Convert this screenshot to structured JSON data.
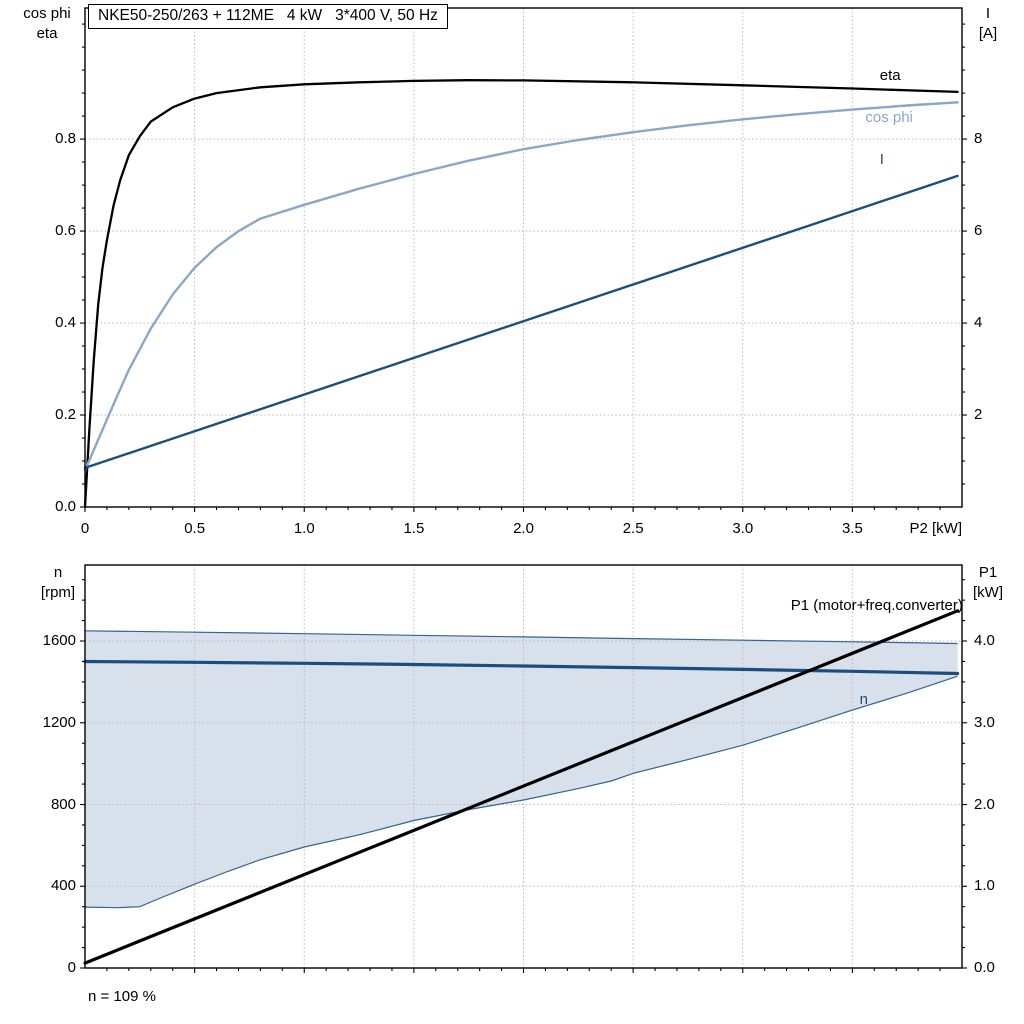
{
  "chart_data": [
    {
      "type": "line",
      "title": "NKE50-250/263 + 112ME   4 kW   3*400 V, 50 Hz",
      "xlabel": "P2 [kW]",
      "ylabel_left": [
        "cos phi",
        "eta"
      ],
      "ylabel_right": [
        "I",
        "[A]"
      ],
      "xlim": [
        0,
        4.0
      ],
      "ylim_left": [
        0,
        1.085
      ],
      "ylim_right": [
        0,
        10.85
      ],
      "grid": true,
      "x_ticks": [
        {
          "v": 0,
          "label": "0"
        },
        {
          "v": 0.5,
          "label": "0.5"
        },
        {
          "v": 1.0,
          "label": "1.0"
        },
        {
          "v": 1.5,
          "label": "1.5"
        },
        {
          "v": 2.0,
          "label": "2.0"
        },
        {
          "v": 2.5,
          "label": "2.5"
        },
        {
          "v": 3.0,
          "label": "3.0"
        },
        {
          "v": 3.5,
          "label": "3.5"
        }
      ],
      "y_ticks_left": [
        {
          "v": 0.0,
          "label": "0.0"
        },
        {
          "v": 0.2,
          "label": "0.2"
        },
        {
          "v": 0.4,
          "label": "0.4"
        },
        {
          "v": 0.6,
          "label": "0.6"
        },
        {
          "v": 0.8,
          "label": "0.8"
        }
      ],
      "y_ticks_right": [
        {
          "v": 2,
          "label": "2"
        },
        {
          "v": 4,
          "label": "4"
        },
        {
          "v": 6,
          "label": "6"
        },
        {
          "v": 8,
          "label": "8"
        }
      ],
      "minor": {
        "x": 0.1,
        "left": 0.05,
        "right": 0.5
      },
      "series": [
        {
          "name": "eta",
          "axis": "left",
          "color": "#000000",
          "width": 2.3,
          "label_at": [
            3.72,
            0.937
          ],
          "points": [
            [
              0,
              0
            ],
            [
              0.02,
              0.17
            ],
            [
              0.04,
              0.32
            ],
            [
              0.06,
              0.44
            ],
            [
              0.08,
              0.52
            ],
            [
              0.1,
              0.58
            ],
            [
              0.13,
              0.655
            ],
            [
              0.16,
              0.71
            ],
            [
              0.2,
              0.765
            ],
            [
              0.25,
              0.806
            ],
            [
              0.3,
              0.838
            ],
            [
              0.4,
              0.869
            ],
            [
              0.5,
              0.888
            ],
            [
              0.6,
              0.9
            ],
            [
              0.8,
              0.9125
            ],
            [
              1.0,
              0.919
            ],
            [
              1.25,
              0.9235
            ],
            [
              1.5,
              0.9265
            ],
            [
              1.75,
              0.928
            ],
            [
              2.0,
              0.9275
            ],
            [
              2.5,
              0.9235
            ],
            [
              3.0,
              0.917
            ],
            [
              3.5,
              0.91
            ],
            [
              3.98,
              0.9025
            ]
          ]
        },
        {
          "name": "cos phi",
          "axis": "left",
          "color": "#8BA7C6",
          "width": 2.4,
          "label_at": [
            3.776,
            0.846
          ],
          "points": [
            [
              0,
              0.08
            ],
            [
              0.05,
              0.135
            ],
            [
              0.1,
              0.19
            ],
            [
              0.15,
              0.245
            ],
            [
              0.2,
              0.298
            ],
            [
              0.3,
              0.388
            ],
            [
              0.4,
              0.462
            ],
            [
              0.5,
              0.52
            ],
            [
              0.6,
              0.565
            ],
            [
              0.7,
              0.6
            ],
            [
              0.8,
              0.627
            ],
            [
              1.0,
              0.657
            ],
            [
              1.25,
              0.692
            ],
            [
              1.5,
              0.724
            ],
            [
              1.75,
              0.753
            ],
            [
              2.0,
              0.778
            ],
            [
              2.25,
              0.798
            ],
            [
              2.5,
              0.815
            ],
            [
              2.75,
              0.83
            ],
            [
              3.0,
              0.843
            ],
            [
              3.25,
              0.854
            ],
            [
              3.5,
              0.864
            ],
            [
              3.75,
              0.873
            ],
            [
              3.98,
              0.88
            ]
          ]
        },
        {
          "name": "I",
          "axis": "right",
          "color": "#1B4E7D",
          "width": 2.4,
          "label_at": [
            3.644,
            7.545
          ],
          "points": [
            [
              0,
              0.85
            ],
            [
              3.98,
              7.2
            ]
          ]
        }
      ]
    },
    {
      "type": "line",
      "xlabel": "",
      "ylabel_left": [
        "n",
        "[rpm]"
      ],
      "ylabel_right": [
        "P1",
        "[kW]"
      ],
      "annotation": "n = 109 %",
      "xlim": [
        0,
        4.0
      ],
      "ylim_left": [
        0,
        1972
      ],
      "ylim_right": [
        0,
        4.93
      ],
      "grid": true,
      "x_ticks": [
        {
          "v": 0.5,
          "label": ""
        },
        {
          "v": 1.0,
          "label": ""
        },
        {
          "v": 1.5,
          "label": ""
        },
        {
          "v": 2.0,
          "label": ""
        },
        {
          "v": 2.5,
          "label": ""
        },
        {
          "v": 3.0,
          "label": ""
        },
        {
          "v": 3.5,
          "label": ""
        }
      ],
      "y_ticks_left": [
        {
          "v": 0,
          "label": "0"
        },
        {
          "v": 400,
          "label": "400"
        },
        {
          "v": 800,
          "label": "800"
        },
        {
          "v": 1200,
          "label": "1200"
        },
        {
          "v": 1600,
          "label": "1600"
        }
      ],
      "y_ticks_right": [
        {
          "v": 0,
          "label": "0.0"
        },
        {
          "v": 1,
          "label": "1.0"
        },
        {
          "v": 2,
          "label": "2.0"
        },
        {
          "v": 3,
          "label": "3.0"
        },
        {
          "v": 4,
          "label": "4.0"
        }
      ],
      "minor": {
        "x": 0.1,
        "left": 100,
        "right": 0.25
      },
      "band": {
        "name": "speed-range-band",
        "fill": "#c9d6e4",
        "fill_opacity": 0.75,
        "edge": "#356392",
        "upper": [
          [
            0,
            1650
          ],
          [
            0.5,
            1643
          ],
          [
            1.0,
            1636
          ],
          [
            1.5,
            1628
          ],
          [
            2.0,
            1620
          ],
          [
            2.5,
            1612
          ],
          [
            3.0,
            1604
          ],
          [
            3.5,
            1596
          ],
          [
            3.98,
            1588
          ]
        ],
        "lower": [
          [
            0,
            298
          ],
          [
            0.15,
            295
          ],
          [
            0.25,
            300
          ],
          [
            0.35,
            345
          ],
          [
            0.5,
            410
          ],
          [
            0.65,
            472
          ],
          [
            0.8,
            530
          ],
          [
            1.0,
            592
          ],
          [
            1.25,
            652
          ],
          [
            1.5,
            722
          ],
          [
            1.75,
            775
          ],
          [
            2.0,
            822
          ],
          [
            2.25,
            878
          ],
          [
            2.4,
            915
          ],
          [
            2.5,
            952
          ],
          [
            2.75,
            1020
          ],
          [
            3.0,
            1090
          ],
          [
            3.25,
            1175
          ],
          [
            3.5,
            1262
          ],
          [
            3.75,
            1345
          ],
          [
            3.98,
            1428
          ]
        ]
      },
      "series": [
        {
          "name": "n",
          "axis": "left",
          "color": "#1B4E7D",
          "width": 3.2,
          "label_at": [
            3.571,
            1311
          ],
          "points": [
            [
              0,
              1500
            ],
            [
              0.5,
              1496
            ],
            [
              1.0,
              1491
            ],
            [
              1.5,
              1485
            ],
            [
              2.0,
              1478
            ],
            [
              2.5,
              1470
            ],
            [
              3.0,
              1461
            ],
            [
              3.5,
              1452
            ],
            [
              3.98,
              1441
            ]
          ]
        },
        {
          "name": "P1 (motor+freq.converter)",
          "axis": "right",
          "color": "#000000",
          "width": 3.2,
          "label_at": [
            4.004,
            4.429
          ],
          "points": [
            [
              0,
              0.06
            ],
            [
              3.98,
              4.37
            ]
          ]
        }
      ]
    }
  ]
}
